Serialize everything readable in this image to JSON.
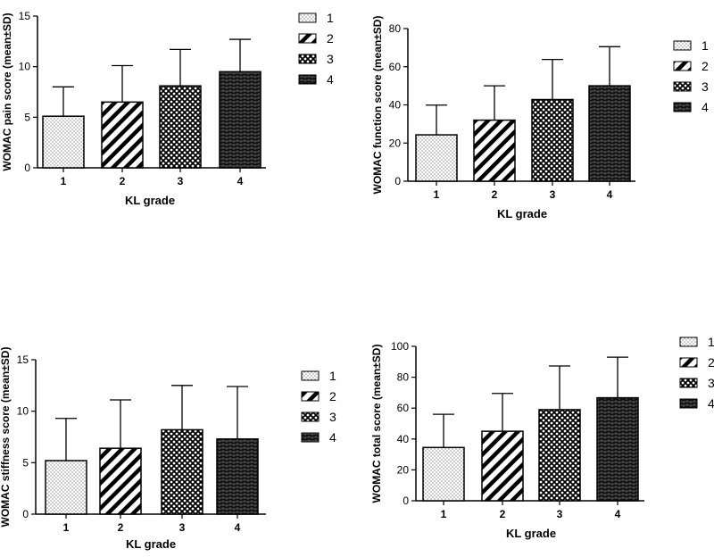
{
  "chart_data": [
    {
      "type": "bar",
      "ylabel": "WOMAC pain score (mean±SD)",
      "xlabel": "KL grade",
      "categories": [
        "1",
        "2",
        "3",
        "4"
      ],
      "values": [
        5.1,
        6.5,
        8.1,
        9.5
      ],
      "sd": [
        2.9,
        3.6,
        3.6,
        3.2
      ],
      "ylim": [
        0,
        15
      ],
      "yticks": [
        0,
        5,
        10,
        15
      ],
      "legend": [
        "1",
        "2",
        "3",
        "4"
      ],
      "patterns": [
        "dots",
        "diag",
        "cross",
        "brick"
      ]
    },
    {
      "type": "bar",
      "ylabel": "WOMAC function score (mean±SD)",
      "xlabel": "KL grade",
      "categories": [
        "1",
        "2",
        "3",
        "4"
      ],
      "values": [
        24.3,
        32.0,
        42.8,
        50.0
      ],
      "sd": [
        15.6,
        18.0,
        21.0,
        20.5
      ],
      "ylim": [
        0,
        80
      ],
      "yticks": [
        0,
        20,
        40,
        60,
        80
      ],
      "legend": [
        "1",
        "2",
        "3",
        "4"
      ],
      "patterns": [
        "dots",
        "diag",
        "cross",
        "brick"
      ]
    },
    {
      "type": "bar",
      "ylabel": "WOMAC stiffness score (mean±SD)",
      "xlabel": "KL grade",
      "categories": [
        "1",
        "2",
        "3",
        "4"
      ],
      "values": [
        5.2,
        6.4,
        8.2,
        7.3
      ],
      "sd": [
        4.1,
        4.7,
        4.3,
        5.1
      ],
      "ylim": [
        0,
        15
      ],
      "yticks": [
        0,
        5,
        10,
        15
      ],
      "legend": [
        "1",
        "2",
        "3",
        "4"
      ],
      "patterns": [
        "dots",
        "diag",
        "cross",
        "brick"
      ]
    },
    {
      "type": "bar",
      "ylabel": "WOMAC total score (mean±SD)",
      "xlabel": "KL grade",
      "categories": [
        "1",
        "2",
        "3",
        "4"
      ],
      "values": [
        34.5,
        45.0,
        59.0,
        66.7
      ],
      "sd": [
        21.5,
        24.5,
        28.3,
        26.3
      ],
      "ylim": [
        0,
        100
      ],
      "yticks": [
        0,
        20,
        40,
        60,
        80,
        100
      ],
      "legend": [
        "1",
        "2",
        "3",
        "4"
      ],
      "patterns": [
        "dots",
        "diag",
        "cross",
        "brick"
      ]
    }
  ]
}
